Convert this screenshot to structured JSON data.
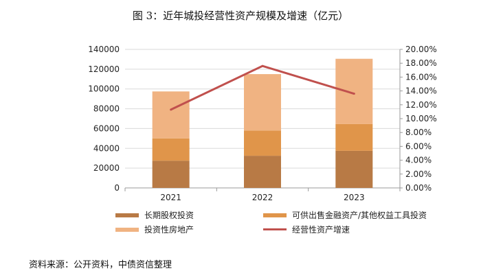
{
  "title": "图 3：近年城投经营性资产规模及增速（亿元）",
  "source": "资料来源：公开资料，中债资信整理",
  "colors": {
    "long_term_equity": "#B87A45",
    "afs_other_equity": "#E0954A",
    "investment_property": "#F0B382",
    "growth_line": "#C0504D",
    "axis": "#999999",
    "grid": "#D9D9D9"
  },
  "chart_data": {
    "type": "bar",
    "stacked": true,
    "categories": [
      "2021",
      "2022",
      "2023"
    ],
    "series": [
      {
        "name": "长期股权投资",
        "axis": "left",
        "values": [
          27500,
          32500,
          37500
        ]
      },
      {
        "name": "可供出售金融资产/其他权益工具投资",
        "axis": "left",
        "values": [
          22500,
          25500,
          27000
        ]
      },
      {
        "name": "投资性房地产",
        "axis": "left",
        "values": [
          47500,
          57000,
          66000
        ]
      },
      {
        "name": "经营性资产增速",
        "type": "line",
        "axis": "right",
        "values": [
          0.113,
          0.176,
          0.136
        ]
      }
    ],
    "ylim": [
      0,
      140000
    ],
    "y_ticks": [
      "0",
      "20000",
      "40000",
      "60000",
      "80000",
      "100000",
      "120000",
      "140000"
    ],
    "y2lim": [
      0,
      0.2
    ],
    "y2_ticks": [
      "0.00%",
      "2.00%",
      "4.00%",
      "6.00%",
      "8.00%",
      "10.00%",
      "12.00%",
      "14.00%",
      "16.00%",
      "18.00%",
      "20.00%"
    ],
    "grid": true,
    "legend_position": "bottom"
  }
}
